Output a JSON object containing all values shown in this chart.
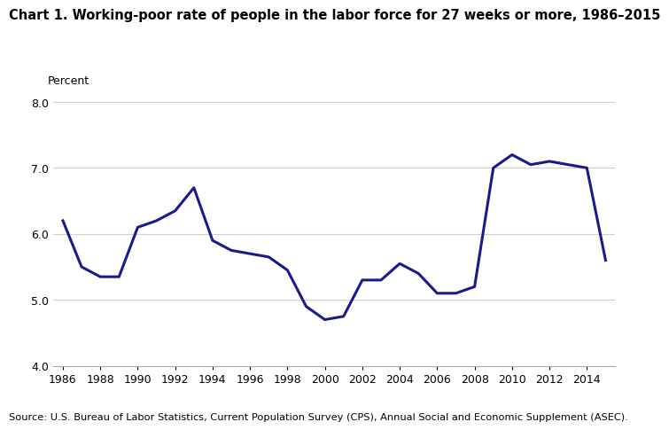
{
  "title": "Chart 1. Working-poor rate of people in the labor force for 27 weeks or more, 1986–2015",
  "ylabel": "Percent",
  "source": "Source: U.S. Bureau of Labor Statistics, Current Population Survey (CPS), Annual Social and Economic Supplement (ASEC).",
  "line_color": "#1a1a8c",
  "line_width": 2.2,
  "background_color": "#ffffff",
  "ylim": [
    4.0,
    8.0
  ],
  "yticks": [
    4.0,
    5.0,
    6.0,
    7.0,
    8.0
  ],
  "years": [
    1986,
    1987,
    1988,
    1989,
    1990,
    1991,
    1992,
    1993,
    1994,
    1995,
    1996,
    1997,
    1998,
    1999,
    2000,
    2001,
    2002,
    2003,
    2004,
    2005,
    2006,
    2007,
    2008,
    2009,
    2010,
    2011,
    2012,
    2013,
    2014,
    2015
  ],
  "values": [
    6.2,
    5.5,
    5.35,
    5.35,
    6.1,
    6.2,
    6.35,
    6.7,
    5.9,
    5.75,
    5.7,
    5.65,
    5.45,
    4.9,
    4.7,
    4.75,
    5.3,
    5.3,
    5.55,
    5.4,
    5.1,
    5.1,
    5.2,
    7.0,
    7.2,
    7.05,
    7.1,
    7.05,
    7.0,
    5.6
  ]
}
